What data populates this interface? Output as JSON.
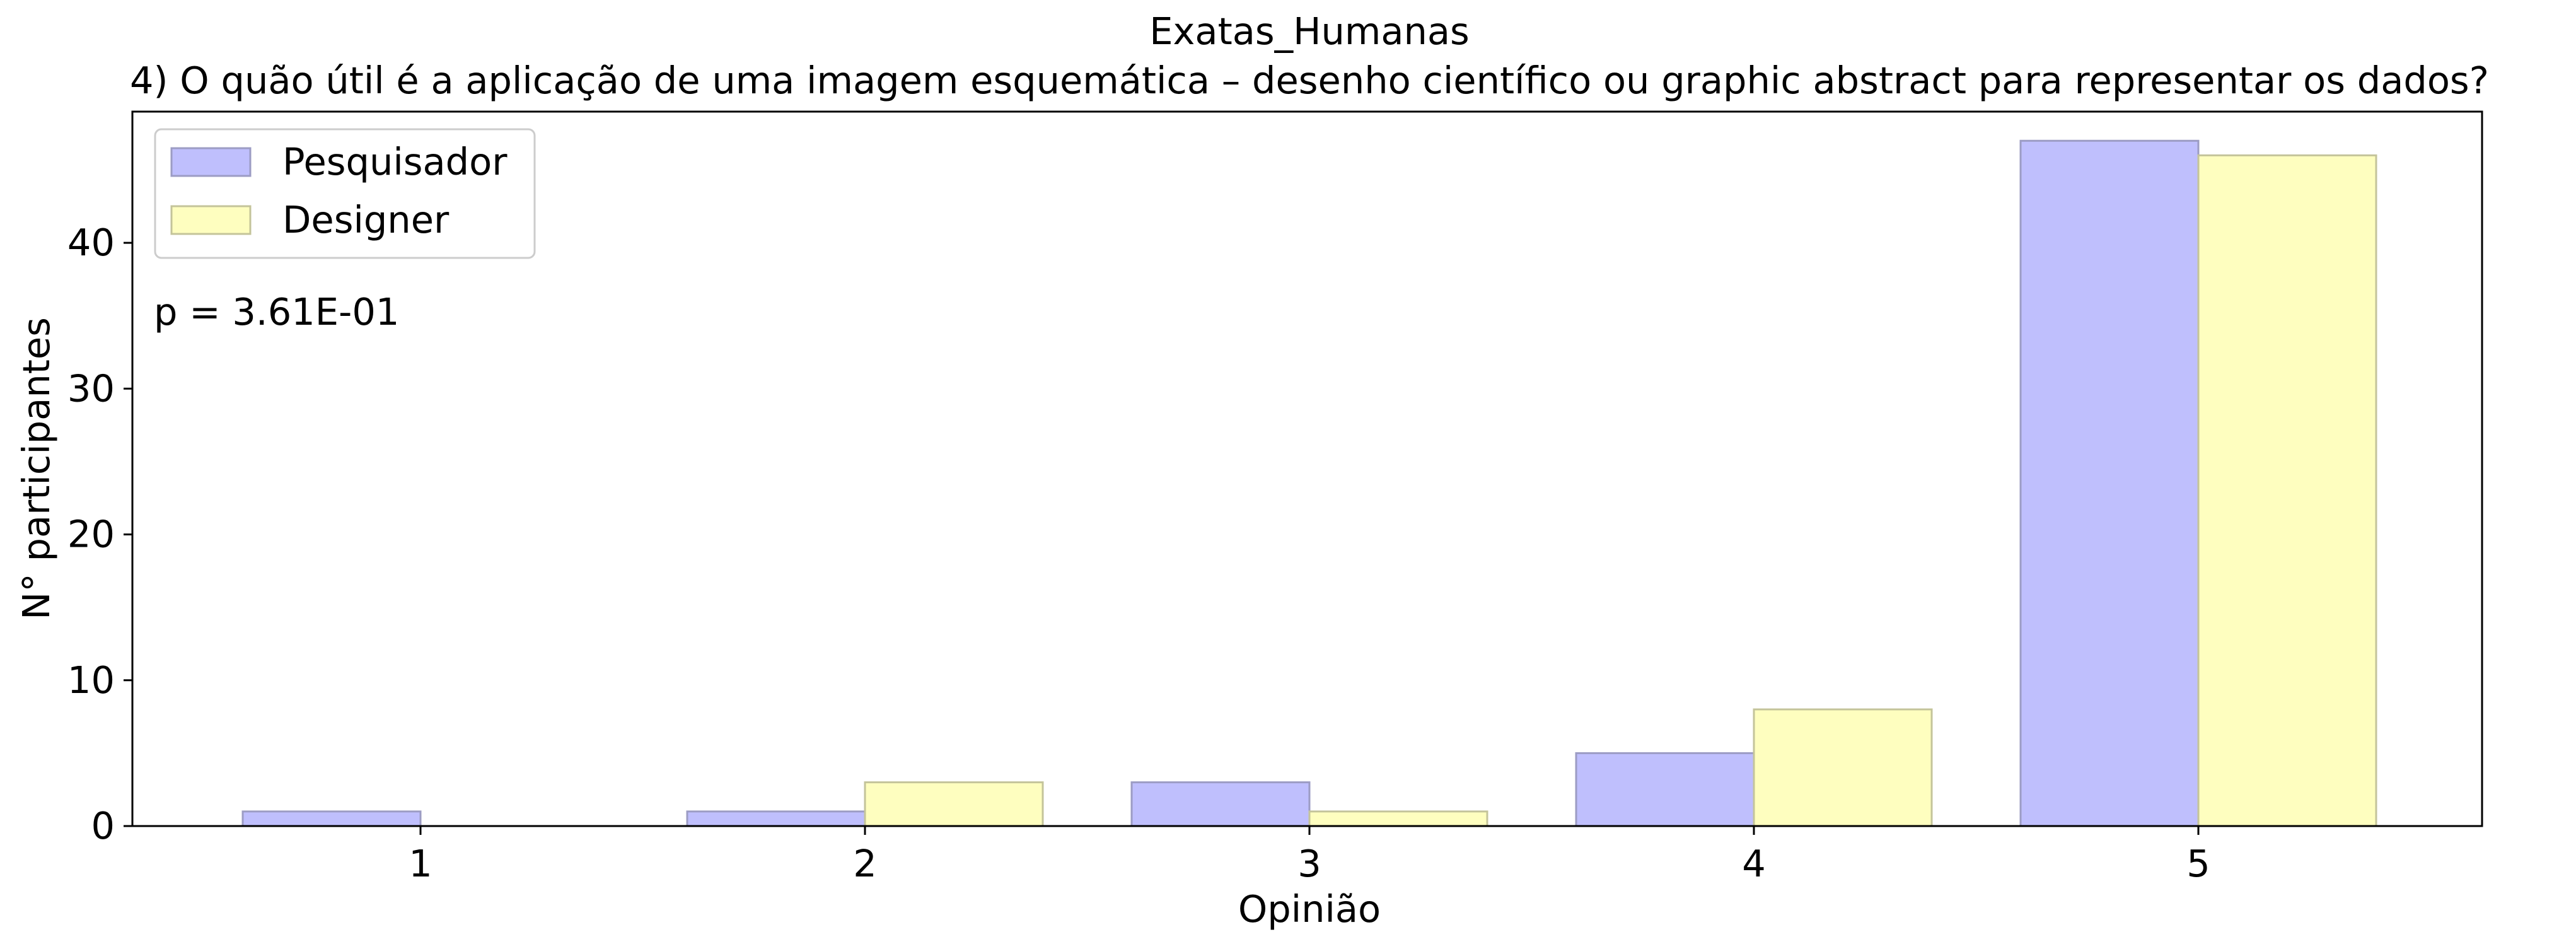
{
  "chart_data": {
    "type": "bar",
    "title": "Exatas_Humanas",
    "subtitle": "4) O quão útil é a aplicação de uma imagem esquemática – desenho científico ou graphic abstract para representar os dados?",
    "xlabel": "Opinião",
    "ylabel": "N° participantes",
    "categories": [
      "1",
      "2",
      "3",
      "4",
      "5"
    ],
    "series": [
      {
        "name": "Pesquisador",
        "values": [
          1,
          1,
          3,
          5,
          47
        ],
        "color": "#bfbffd",
        "edge": "#9c9cc4"
      },
      {
        "name": "Designer",
        "values": [
          0,
          3,
          1,
          8,
          46
        ],
        "color": "#fefebf",
        "edge": "#c4c49a"
      }
    ],
    "ylim": [
      0,
      49
    ],
    "yticks": [
      0,
      10,
      20,
      30,
      40
    ],
    "grid": false,
    "legend": "top-left",
    "annotation": "p = 3.61E-01"
  }
}
